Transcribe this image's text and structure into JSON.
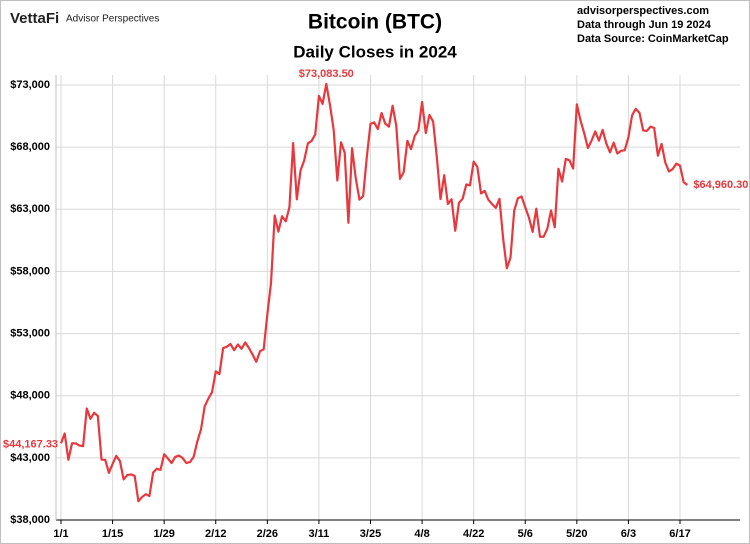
{
  "chart_data": {
    "type": "line",
    "title": "Bitcoin (BTC)",
    "subtitle": "Daily Closes in 2024",
    "logo": {
      "brand": "VettaFi",
      "name": "Advisor Perspectives"
    },
    "notes": [
      "advisorperspectives.com",
      "Data through Jun 19 2024",
      "Data Source: CoinMarketCap"
    ],
    "color": "#e8383d",
    "grid": true,
    "ylim": [
      38000,
      73000
    ],
    "yticks": [
      {
        "value": 38000,
        "label": "$38,000"
      },
      {
        "value": 43000,
        "label": "$43,000"
      },
      {
        "value": 48000,
        "label": "$48,000"
      },
      {
        "value": 53000,
        "label": "$53,000"
      },
      {
        "value": 58000,
        "label": "$58,000"
      },
      {
        "value": 63000,
        "label": "$63,000"
      },
      {
        "value": 68000,
        "label": "$68,000"
      },
      {
        "value": 73000,
        "label": "$73,000"
      }
    ],
    "categories": [
      "1/1",
      null,
      null,
      null,
      null,
      null,
      null,
      null,
      null,
      null,
      null,
      null,
      null,
      null,
      "1/15",
      null,
      null,
      null,
      null,
      null,
      null,
      null,
      null,
      null,
      null,
      null,
      null,
      null,
      "1/29",
      null,
      null,
      null,
      null,
      null,
      null,
      null,
      null,
      null,
      null,
      null,
      null,
      null,
      "2/12",
      null,
      null,
      null,
      null,
      null,
      null,
      null,
      null,
      null,
      null,
      null,
      null,
      null,
      "2/26",
      null,
      null,
      null,
      null,
      null,
      null,
      null,
      null,
      null,
      null,
      null,
      null,
      null,
      "3/11",
      null,
      null,
      null,
      null,
      null,
      null,
      null,
      null,
      null,
      null,
      null,
      null,
      null,
      "3/25",
      null,
      null,
      null,
      null,
      null,
      null,
      null,
      null,
      null,
      null,
      null,
      null,
      null,
      "4/8",
      null,
      null,
      null,
      null,
      null,
      null,
      null,
      null,
      null,
      null,
      null,
      null,
      null,
      "4/22",
      null,
      null,
      null,
      null,
      null,
      null,
      null,
      null,
      null,
      null,
      null,
      null,
      null,
      "5/6",
      null,
      null,
      null,
      null,
      null,
      null,
      null,
      null,
      null,
      null,
      null,
      null,
      null,
      "5/20",
      null,
      null,
      null,
      null,
      null,
      null,
      null,
      null,
      null,
      null,
      null,
      null,
      null,
      "6/3",
      null,
      null,
      null,
      null,
      null,
      null,
      null,
      null,
      null,
      null,
      null,
      null,
      null,
      "6/17",
      null,
      null
    ],
    "values": [
      44167.33,
      44957,
      42848,
      44179,
      44162,
      43989,
      43943,
      46970,
      46139,
      46627,
      46368,
      42853,
      42842,
      41796,
      42511,
      43155,
      42742,
      41262,
      41618,
      41665,
      41545,
      39507,
      39845,
      40077,
      39933,
      41816,
      42120,
      42035,
      43288,
      42952,
      42582,
      43075,
      43185,
      42992,
      42583,
      42658,
      43084,
      44318,
      45301,
      47147,
      47771,
      48293,
      49958,
      49742,
      51826,
      51938,
      52160,
      51663,
      52122,
      51779,
      52284,
      51839,
      51304,
      50731,
      51571,
      51733,
      54522,
      57085,
      62504,
      61198,
      62440,
      62029,
      63167,
      68330,
      63802,
      66106,
      66926,
      68300,
      68498,
      69019,
      72123,
      71481,
      73083.5,
      71396,
      69403,
      65315,
      68390,
      67548,
      61912,
      67913,
      65491,
      63779,
      64062,
      67211,
      69880,
      69988,
      69455,
      70744,
      69892,
      69645,
      71333,
      69702,
      65446,
      65980,
      68508,
      67837,
      68896,
      69362,
      71631,
      69139,
      70587,
      70060,
      67195,
      63821,
      65738,
      63426,
      63811,
      61276,
      63512,
      63843,
      64994,
      64926,
      66837,
      66408,
      64276,
      64481,
      63755,
      63419,
      63113,
      63841,
      60636,
      58254,
      59123,
      62889,
      63891,
      64031,
      63161,
      62334,
      61187,
      63049,
      60792,
      60793,
      61448,
      62901,
      61552,
      66267,
      65231,
      67051,
      66940,
      66278,
      71448,
      70136,
      69122,
      67929,
      68526,
      69265,
      68518,
      69394,
      68296,
      67578,
      68364,
      67491,
      67706,
      67751,
      68804,
      70567,
      71082,
      70757,
      69342,
      69305,
      69648,
      69540,
      67314,
      68263,
      66773,
      66043,
      66229,
      66676,
      66505,
      65174,
      64960.3
    ],
    "value_labels": [
      "$44,167.33",
      null,
      null,
      null,
      null,
      null,
      null,
      null,
      null,
      null,
      null,
      null,
      null,
      null,
      null,
      null,
      null,
      null,
      null,
      null,
      null,
      null,
      null,
      null,
      null,
      null,
      null,
      null,
      null,
      null,
      null,
      null,
      null,
      null,
      null,
      null,
      null,
      null,
      null,
      null,
      null,
      null,
      null,
      null,
      null,
      null,
      null,
      null,
      null,
      null,
      null,
      null,
      null,
      null,
      null,
      null,
      null,
      null,
      null,
      null,
      null,
      null,
      null,
      null,
      null,
      null,
      null,
      null,
      null,
      null,
      null,
      null,
      "$73,083.50",
      null,
      null,
      null,
      null,
      null,
      null,
      null,
      null,
      null,
      null,
      null,
      null,
      null,
      null,
      null,
      null,
      null,
      null,
      null,
      null,
      null,
      null,
      null,
      null,
      null,
      null,
      null,
      null,
      null,
      null,
      null,
      null,
      null,
      null,
      null,
      null,
      null,
      null,
      null,
      null,
      null,
      null,
      null,
      null,
      null,
      null,
      null,
      null,
      null,
      null,
      null,
      null,
      null,
      null,
      null,
      null,
      null,
      null,
      null,
      null,
      null,
      null,
      null,
      null,
      null,
      null,
      null,
      null,
      null,
      null,
      null,
      null,
      null,
      null,
      null,
      null,
      null,
      null,
      null,
      null,
      null,
      null,
      null,
      null,
      null,
      null,
      null,
      null,
      null,
      null,
      null,
      null,
      null,
      null,
      null,
      null,
      null,
      "$64,960.30"
    ]
  }
}
